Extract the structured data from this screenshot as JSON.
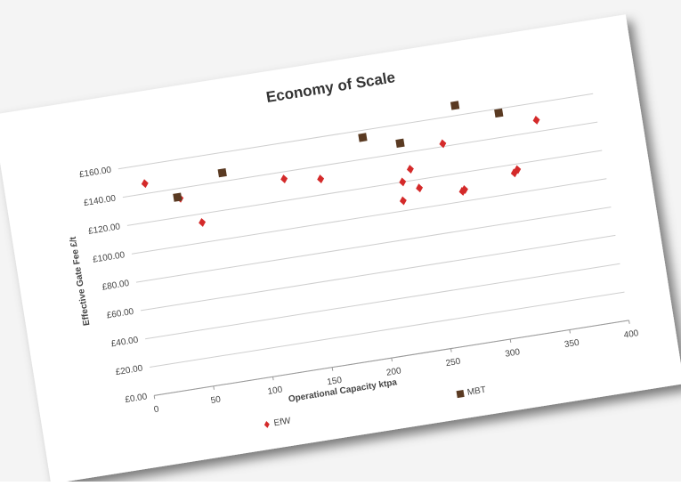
{
  "chart_data": {
    "type": "scatter",
    "title": "Economy of Scale",
    "x_label": "Operational Capacity ktpa",
    "y_label": "Effective Gate Fee £/t",
    "series": [
      {
        "name": "EfW",
        "color": "#d42a2a",
        "marker": "diamond",
        "x": [
          20,
          47,
          62,
          135,
          165,
          230,
          232,
          240,
          245,
          270,
          280,
          282,
          325,
          328,
          350
        ],
        "values": [
          147,
          133,
          114,
          135,
          131,
          107,
          120,
          128,
          114,
          142,
          107,
          108,
          114,
          116,
          148
        ]
      },
      {
        "name": "MBT",
        "color": "#5a3a22",
        "marker": "square",
        "x": [
          45,
          85,
          205,
          235,
          285,
          320
        ],
        "values": [
          134,
          146,
          155,
          147,
          167,
          157
        ]
      }
    ],
    "xlim": [
      0,
      400
    ],
    "xticks": [
      0,
      50,
      100,
      150,
      200,
      250,
      300,
      350,
      400
    ],
    "ylim": [
      0,
      180
    ],
    "yticks": [
      {
        "value": 0,
        "label": "£0.00"
      },
      {
        "value": 20,
        "label": "£20.00"
      },
      {
        "value": 40,
        "label": "£40.00"
      },
      {
        "value": 60,
        "label": "£60.00"
      },
      {
        "value": 80,
        "label": "£80.00"
      },
      {
        "value": 100,
        "label": "£100.00"
      },
      {
        "value": 120,
        "label": "£120.00"
      },
      {
        "value": 140,
        "label": "£140.00"
      },
      {
        "value": 160,
        "label": "£160.00"
      }
    ],
    "grid": true
  }
}
